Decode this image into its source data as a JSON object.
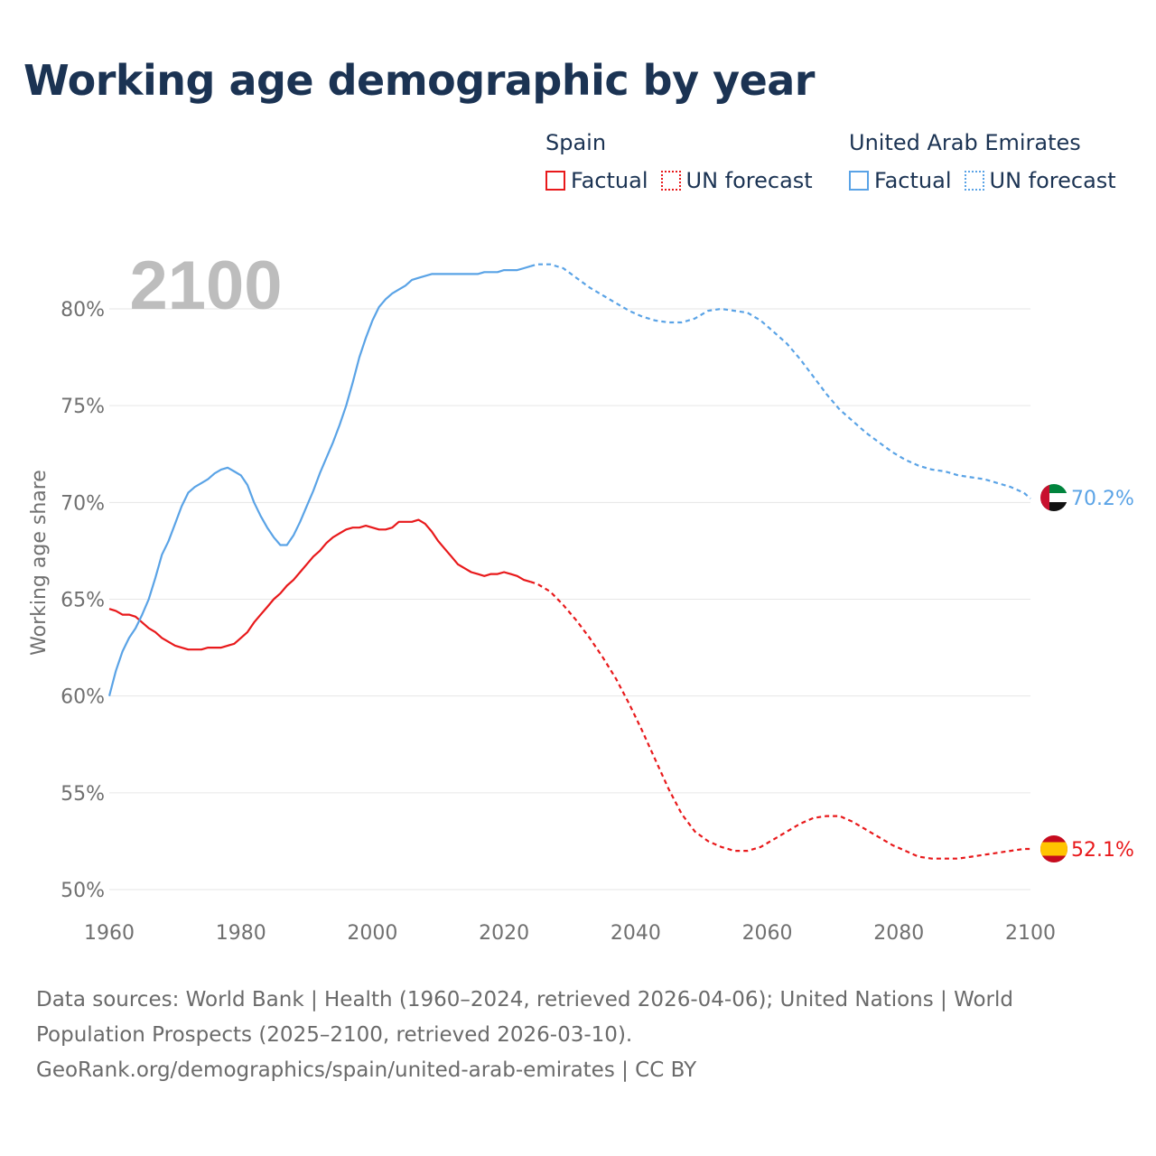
{
  "title": "Working age demographic by year",
  "legend": {
    "groups": [
      {
        "name": "Spain",
        "color": "#e8191b",
        "factual_label": "Factual",
        "forecast_label": "UN forecast"
      },
      {
        "name": "United Arab Emirates",
        "color": "#5aa3e6",
        "factual_label": "Factual",
        "forecast_label": "UN forecast"
      }
    ]
  },
  "year_watermark": "2100",
  "footer": {
    "sources": "Data sources: World Bank | Health (1960–2024, retrieved 2026-04-06); United Nations | World Population Prospects (2025–2100, retrieved 2026-03-10).",
    "attribution": "GeoRank.org/demographics/spain/united-arab-emirates | CC BY"
  },
  "chart_data": {
    "type": "line",
    "title": "Working age demographic by year",
    "xlabel": "",
    "ylabel": "Working age share",
    "xlim": [
      1960,
      2100
    ],
    "ylim": [
      50,
      82
    ],
    "x_ticks": [
      "1960",
      "1980",
      "2000",
      "2020",
      "2040",
      "2060",
      "2080",
      "2100"
    ],
    "y_ticks": [
      {
        "value": 50,
        "label": "50%"
      },
      {
        "value": 55,
        "label": "55%"
      },
      {
        "value": 60,
        "label": "60%"
      },
      {
        "value": 65,
        "label": "65%"
      },
      {
        "value": 70,
        "label": "70%"
      },
      {
        "value": 75,
        "label": "75%"
      },
      {
        "value": 80,
        "label": "80%"
      }
    ],
    "grid": true,
    "legend_position": "top-right",
    "forecast_start_year": 2024,
    "series": [
      {
        "name": "Spain",
        "color": "#e8191b",
        "end_label": "52.1%",
        "flag": "spain-flag",
        "points": [
          [
            1960,
            64.5
          ],
          [
            1961,
            64.4
          ],
          [
            1962,
            64.2
          ],
          [
            1963,
            64.2
          ],
          [
            1964,
            64.1
          ],
          [
            1965,
            63.8
          ],
          [
            1966,
            63.5
          ],
          [
            1967,
            63.3
          ],
          [
            1968,
            63.0
          ],
          [
            1969,
            62.8
          ],
          [
            1970,
            62.6
          ],
          [
            1971,
            62.5
          ],
          [
            1972,
            62.4
          ],
          [
            1973,
            62.4
          ],
          [
            1974,
            62.4
          ],
          [
            1975,
            62.5
          ],
          [
            1976,
            62.5
          ],
          [
            1977,
            62.5
          ],
          [
            1978,
            62.6
          ],
          [
            1979,
            62.7
          ],
          [
            1980,
            63.0
          ],
          [
            1981,
            63.3
          ],
          [
            1982,
            63.8
          ],
          [
            1983,
            64.2
          ],
          [
            1984,
            64.6
          ],
          [
            1985,
            65.0
          ],
          [
            1986,
            65.3
          ],
          [
            1987,
            65.7
          ],
          [
            1988,
            66.0
          ],
          [
            1989,
            66.4
          ],
          [
            1990,
            66.8
          ],
          [
            1991,
            67.2
          ],
          [
            1992,
            67.5
          ],
          [
            1993,
            67.9
          ],
          [
            1994,
            68.2
          ],
          [
            1995,
            68.4
          ],
          [
            1996,
            68.6
          ],
          [
            1997,
            68.7
          ],
          [
            1998,
            68.7
          ],
          [
            1999,
            68.8
          ],
          [
            2000,
            68.7
          ],
          [
            2001,
            68.6
          ],
          [
            2002,
            68.6
          ],
          [
            2003,
            68.7
          ],
          [
            2004,
            69.0
          ],
          [
            2005,
            69.0
          ],
          [
            2006,
            69.0
          ],
          [
            2007,
            69.1
          ],
          [
            2008,
            68.9
          ],
          [
            2009,
            68.5
          ],
          [
            2010,
            68.0
          ],
          [
            2011,
            67.6
          ],
          [
            2012,
            67.2
          ],
          [
            2013,
            66.8
          ],
          [
            2014,
            66.6
          ],
          [
            2015,
            66.4
          ],
          [
            2016,
            66.3
          ],
          [
            2017,
            66.2
          ],
          [
            2018,
            66.3
          ],
          [
            2019,
            66.3
          ],
          [
            2020,
            66.4
          ],
          [
            2021,
            66.3
          ],
          [
            2022,
            66.2
          ],
          [
            2023,
            66.0
          ],
          [
            2024,
            65.9
          ],
          [
            2025,
            65.8
          ],
          [
            2027,
            65.4
          ],
          [
            2029,
            64.7
          ],
          [
            2031,
            63.9
          ],
          [
            2033,
            63.0
          ],
          [
            2035,
            62.0
          ],
          [
            2037,
            60.9
          ],
          [
            2039,
            59.6
          ],
          [
            2041,
            58.2
          ],
          [
            2043,
            56.7
          ],
          [
            2045,
            55.2
          ],
          [
            2047,
            53.9
          ],
          [
            2049,
            53.0
          ],
          [
            2051,
            52.5
          ],
          [
            2053,
            52.2
          ],
          [
            2055,
            52.0
          ],
          [
            2057,
            52.0
          ],
          [
            2059,
            52.2
          ],
          [
            2061,
            52.6
          ],
          [
            2063,
            53.0
          ],
          [
            2065,
            53.4
          ],
          [
            2067,
            53.7
          ],
          [
            2069,
            53.8
          ],
          [
            2071,
            53.8
          ],
          [
            2073,
            53.5
          ],
          [
            2075,
            53.1
          ],
          [
            2077,
            52.7
          ],
          [
            2079,
            52.3
          ],
          [
            2081,
            52.0
          ],
          [
            2083,
            51.7
          ],
          [
            2085,
            51.6
          ],
          [
            2087,
            51.6
          ],
          [
            2089,
            51.6
          ],
          [
            2091,
            51.7
          ],
          [
            2093,
            51.8
          ],
          [
            2095,
            51.9
          ],
          [
            2097,
            52.0
          ],
          [
            2099,
            52.1
          ],
          [
            2100,
            52.1
          ]
        ]
      },
      {
        "name": "United Arab Emirates",
        "color": "#5aa3e6",
        "end_label": "70.2%",
        "flag": "uae-flag",
        "points": [
          [
            1960,
            60.0
          ],
          [
            1961,
            61.3
          ],
          [
            1962,
            62.3
          ],
          [
            1963,
            63.0
          ],
          [
            1964,
            63.5
          ],
          [
            1965,
            64.2
          ],
          [
            1966,
            65.0
          ],
          [
            1967,
            66.1
          ],
          [
            1968,
            67.3
          ],
          [
            1969,
            68.0
          ],
          [
            1970,
            68.9
          ],
          [
            1971,
            69.8
          ],
          [
            1972,
            70.5
          ],
          [
            1973,
            70.8
          ],
          [
            1974,
            71.0
          ],
          [
            1975,
            71.2
          ],
          [
            1976,
            71.5
          ],
          [
            1977,
            71.7
          ],
          [
            1978,
            71.8
          ],
          [
            1979,
            71.6
          ],
          [
            1980,
            71.4
          ],
          [
            1981,
            70.9
          ],
          [
            1982,
            70.0
          ],
          [
            1983,
            69.3
          ],
          [
            1984,
            68.7
          ],
          [
            1985,
            68.2
          ],
          [
            1986,
            67.8
          ],
          [
            1987,
            67.8
          ],
          [
            1988,
            68.3
          ],
          [
            1989,
            69.0
          ],
          [
            1990,
            69.8
          ],
          [
            1991,
            70.6
          ],
          [
            1992,
            71.5
          ],
          [
            1993,
            72.3
          ],
          [
            1994,
            73.1
          ],
          [
            1995,
            74.0
          ],
          [
            1996,
            75.0
          ],
          [
            1997,
            76.2
          ],
          [
            1998,
            77.5
          ],
          [
            1999,
            78.5
          ],
          [
            2000,
            79.4
          ],
          [
            2001,
            80.1
          ],
          [
            2002,
            80.5
          ],
          [
            2003,
            80.8
          ],
          [
            2004,
            81.0
          ],
          [
            2005,
            81.2
          ],
          [
            2006,
            81.5
          ],
          [
            2007,
            81.6
          ],
          [
            2008,
            81.7
          ],
          [
            2009,
            81.8
          ],
          [
            2010,
            81.8
          ],
          [
            2011,
            81.8
          ],
          [
            2012,
            81.8
          ],
          [
            2013,
            81.8
          ],
          [
            2014,
            81.8
          ],
          [
            2015,
            81.8
          ],
          [
            2016,
            81.8
          ],
          [
            2017,
            81.9
          ],
          [
            2018,
            81.9
          ],
          [
            2019,
            81.9
          ],
          [
            2020,
            82.0
          ],
          [
            2021,
            82.0
          ],
          [
            2022,
            82.0
          ],
          [
            2023,
            82.1
          ],
          [
            2024,
            82.2
          ],
          [
            2025,
            82.3
          ],
          [
            2027,
            82.3
          ],
          [
            2029,
            82.1
          ],
          [
            2031,
            81.6
          ],
          [
            2033,
            81.1
          ],
          [
            2035,
            80.7
          ],
          [
            2037,
            80.3
          ],
          [
            2039,
            79.9
          ],
          [
            2041,
            79.6
          ],
          [
            2043,
            79.4
          ],
          [
            2045,
            79.3
          ],
          [
            2047,
            79.3
          ],
          [
            2049,
            79.5
          ],
          [
            2051,
            79.9
          ],
          [
            2053,
            80.0
          ],
          [
            2055,
            79.9
          ],
          [
            2057,
            79.8
          ],
          [
            2059,
            79.4
          ],
          [
            2061,
            78.8
          ],
          [
            2063,
            78.2
          ],
          [
            2065,
            77.4
          ],
          [
            2067,
            76.5
          ],
          [
            2069,
            75.6
          ],
          [
            2071,
            74.8
          ],
          [
            2073,
            74.2
          ],
          [
            2075,
            73.6
          ],
          [
            2077,
            73.1
          ],
          [
            2079,
            72.6
          ],
          [
            2081,
            72.2
          ],
          [
            2083,
            71.9
          ],
          [
            2085,
            71.7
          ],
          [
            2087,
            71.6
          ],
          [
            2089,
            71.4
          ],
          [
            2091,
            71.3
          ],
          [
            2093,
            71.2
          ],
          [
            2095,
            71.0
          ],
          [
            2097,
            70.8
          ],
          [
            2099,
            70.5
          ],
          [
            2100,
            70.2
          ]
        ]
      }
    ]
  }
}
